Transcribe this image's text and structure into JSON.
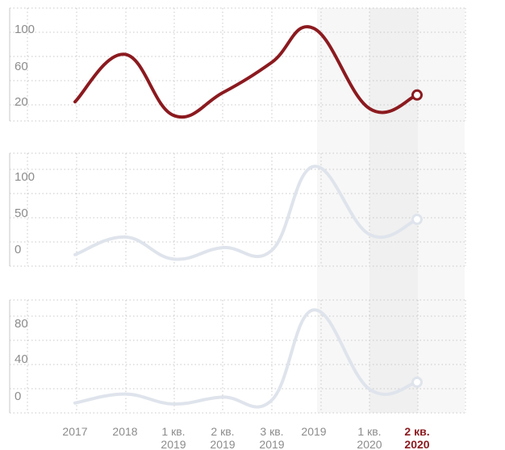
{
  "chart_data": {
    "type": "line",
    "x": [
      "2017",
      "2018",
      "1 кв. 2019",
      "2 кв. 2019",
      "3 кв. 2019",
      "2019",
      "1 кв. 2020",
      "2 кв. 2020"
    ],
    "x_labels": [
      [
        "2017"
      ],
      [
        "2018"
      ],
      [
        "1 кв.",
        "2019"
      ],
      [
        "2 кв.",
        "2019"
      ],
      [
        "3 кв.",
        "2019"
      ],
      [
        "2019"
      ],
      [
        "1 кв.",
        "2020"
      ],
      [
        "2 кв.",
        "2020"
      ]
    ],
    "highlight_index": 7,
    "colors": {
      "active": "#8b1a1f",
      "inactive": "#dfe4ec",
      "grid": "#c8c8c8",
      "text": "#8c8c8c",
      "highlight_band": "#f3f3f3"
    },
    "panels": [
      {
        "yticks": [
          "100",
          "60",
          "20"
        ],
        "ytick_values": [
          100,
          60,
          20
        ],
        "ylim": [
          13,
          113
        ],
        "active": true,
        "values": [
          30,
          72,
          18,
          38,
          65,
          95,
          24,
          36
        ]
      },
      {
        "yticks": [
          "100",
          "50",
          "0"
        ],
        "ytick_values": [
          100,
          50,
          0
        ],
        "ylim": [
          -8,
          120
        ],
        "active": false,
        "values": [
          5,
          25,
          0,
          13,
          10,
          105,
          28,
          45
        ]
      },
      {
        "yticks": [
          "80",
          "40",
          "0"
        ],
        "ytick_values": [
          80,
          40,
          0
        ],
        "ylim": [
          -6,
          108
        ],
        "active": false,
        "values": [
          4,
          13,
          3,
          10,
          7,
          98,
          18,
          25
        ]
      }
    ],
    "grid": true
  }
}
